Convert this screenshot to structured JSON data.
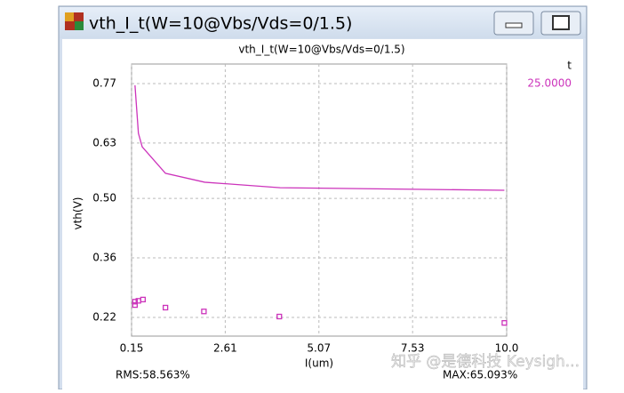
{
  "window": {
    "title": "vth_I_t(W=10@Vbs/Vds=0/1.5)"
  },
  "chart_data": {
    "type": "line",
    "title": "vth_I_t(W=10@Vbs/Vds=0/1.5)",
    "x_label": "I(um)",
    "y_label": "vth(V)",
    "legend_title": "t",
    "xlim": [
      0.15,
      10.0
    ],
    "xticks": [
      0.15,
      2.61,
      5.07,
      7.53,
      {
        "value": 10.0,
        "label": "10.0"
      }
    ],
    "ylim": [
      0.176,
      0.816
    ],
    "yticks": [
      0.22,
      0.36,
      {
        "value": 0.5,
        "label": "0.50"
      },
      0.63,
      0.77
    ],
    "grid": true,
    "series": [
      {
        "name": "25.0000",
        "color": "#cc33bb",
        "x": [
          0.24,
          0.33,
          0.43,
          1.04,
          2.07,
          4.05,
          9.94
        ],
        "values": [
          0.766,
          0.653,
          0.621,
          0.559,
          0.538,
          0.525,
          0.519
        ]
      },
      {
        "color": "#cc33bb",
        "marker": "square",
        "x": [
          0.24,
          0.24,
          0.33,
          0.45,
          1.04,
          2.05,
          4.03,
          9.94
        ],
        "values": [
          0.249,
          0.257,
          0.259,
          0.262,
          0.243,
          0.234,
          0.222,
          0.207
        ]
      }
    ],
    "stats": [
      "RMS:58.563%",
      "MAX:65.093%"
    ]
  },
  "watermark": "知乎 @是德科技 Keysigh..."
}
